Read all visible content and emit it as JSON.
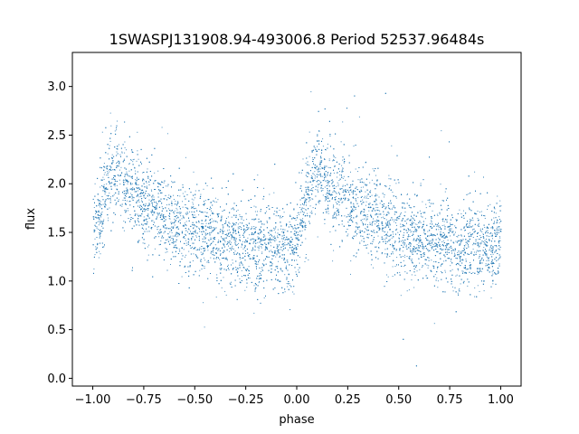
{
  "chart_data": {
    "type": "scatter",
    "title": "1SWASPJ131908.94-493006.8 Period 52537.96484s",
    "xlabel": "phase",
    "ylabel": "flux",
    "xlim": [
      -1.1,
      1.1
    ],
    "ylim": [
      -0.08,
      3.35
    ],
    "xticks": [
      -1.0,
      -0.75,
      -0.5,
      -0.25,
      0.0,
      0.25,
      0.5,
      0.75,
      1.0
    ],
    "xtick_labels": [
      "−1.00",
      "−0.75",
      "−0.50",
      "−0.25",
      "0.00",
      "0.25",
      "0.50",
      "0.75",
      "1.00"
    ],
    "yticks": [
      0.0,
      0.5,
      1.0,
      1.5,
      2.0,
      2.5,
      3.0
    ],
    "ytick_labels": [
      "0.0",
      "0.5",
      "1.0",
      "1.5",
      "2.0",
      "2.5",
      "3.0"
    ],
    "grid": false,
    "marker_color": "#1f77b4",
    "series": [
      {
        "x_range": [
          -1.0,
          1.0
        ],
        "approx_point_count": 30000,
        "trend": {
          "phase": [
            0.0,
            0.02,
            0.05,
            0.08,
            0.1,
            0.15,
            0.2,
            0.3,
            0.4,
            0.5,
            0.6,
            0.7,
            0.8,
            0.9,
            0.97,
            1.0
          ],
          "flux": [
            1.5,
            1.65,
            1.85,
            2.05,
            2.15,
            2.0,
            1.9,
            1.75,
            1.62,
            1.52,
            1.45,
            1.4,
            1.36,
            1.35,
            1.32,
            1.5
          ]
        },
        "scatter_sigma": 0.22
      }
    ]
  }
}
